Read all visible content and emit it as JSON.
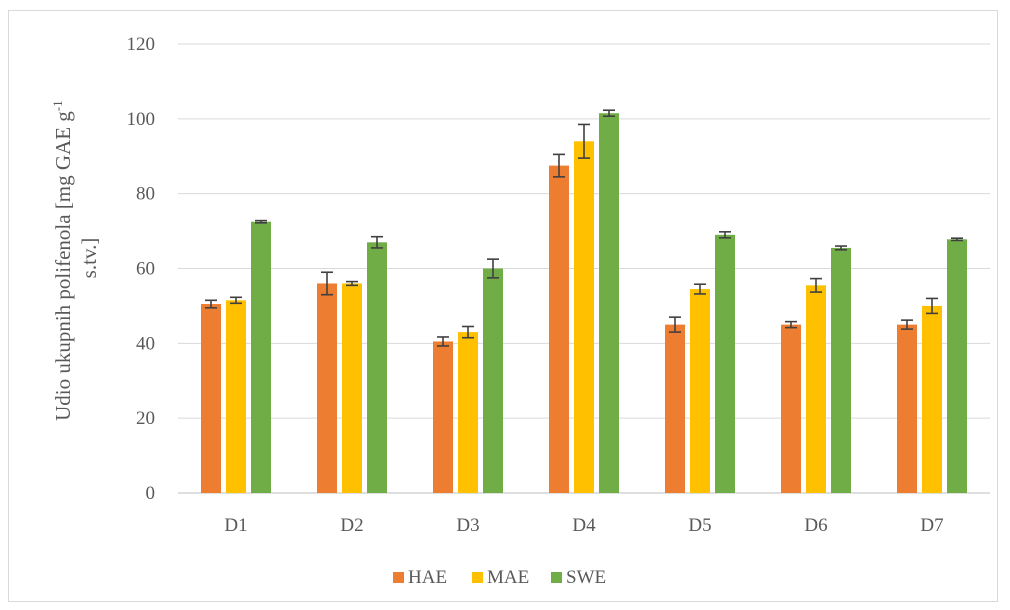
{
  "chart_data": {
    "type": "bar",
    "categories": [
      "D1",
      "D2",
      "D3",
      "D4",
      "D5",
      "D6",
      "D7"
    ],
    "series": [
      {
        "name": "HAE",
        "color": "#ED7D31",
        "values": [
          50.5,
          56.0,
          40.5,
          87.5,
          45.0,
          45.0,
          45.0
        ],
        "errors": [
          1.0,
          3.0,
          1.2,
          3.0,
          2.0,
          0.8,
          1.2
        ]
      },
      {
        "name": "MAE",
        "color": "#FFC000",
        "values": [
          51.5,
          56.0,
          43.0,
          94.0,
          54.5,
          55.5,
          50.0
        ],
        "errors": [
          0.8,
          0.5,
          1.5,
          4.5,
          1.3,
          1.8,
          2.0
        ]
      },
      {
        "name": "SWE",
        "color": "#70AD47",
        "values": [
          72.5,
          67.0,
          60.0,
          101.5,
          69.0,
          65.5,
          67.8
        ],
        "errors": [
          0.3,
          1.5,
          2.5,
          0.8,
          0.8,
          0.5,
          0.3
        ]
      }
    ],
    "yticks": [
      "0",
      "20",
      "40",
      "60",
      "80",
      "100",
      "120"
    ],
    "ylim": [
      0,
      120
    ],
    "ylabel_line1": "Udio ukupnih polifenola [mg GAE g",
    "ylabel_sup": "-1",
    "ylabel_line2": "s.tv.]",
    "xlabel": "",
    "title": "",
    "grid": true,
    "legend_position": "bottom"
  }
}
